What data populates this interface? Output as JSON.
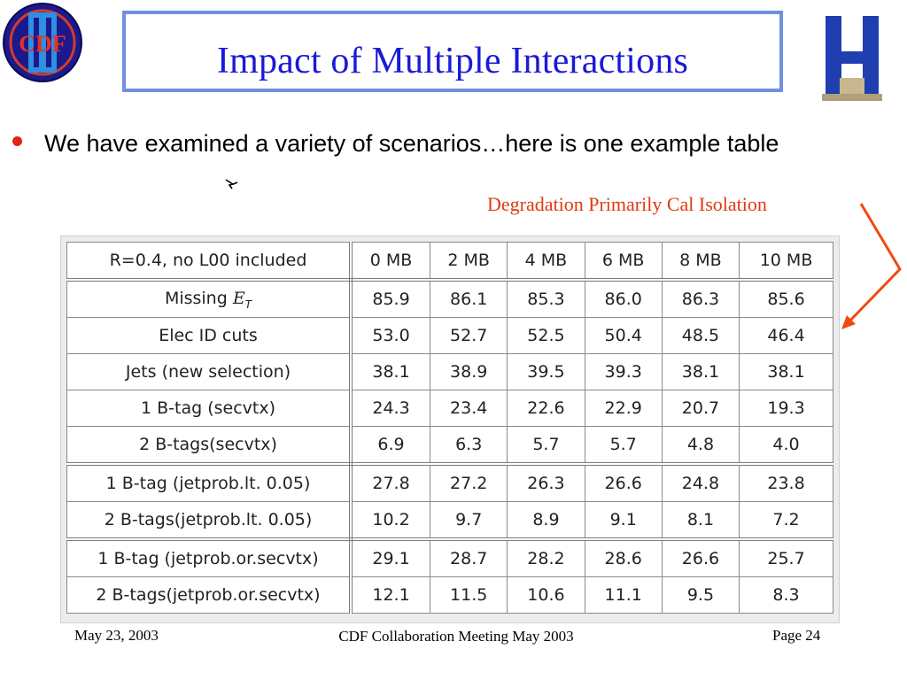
{
  "header": {
    "title": "Impact of Multiple Interactions",
    "logo_left_text": "CDF",
    "logo_left_letter": "II",
    "logo_right_letter": "H"
  },
  "bullet": {
    "text": "We have examined a variety of scenarios…here is one example table"
  },
  "annotation": {
    "text": "Degradation Primarily Cal Isolation"
  },
  "table": {
    "header": [
      "R=0.4, no L00 included",
      "0 MB",
      "2 MB",
      "4 MB",
      "6 MB",
      "8 MB",
      "10 MB"
    ],
    "missing_et_label": "Missing ",
    "missing_et_symbol": "E",
    "missing_et_sub": "T",
    "rows": [
      [
        "Missing E_T",
        "85.9",
        "86.1",
        "85.3",
        "86.0",
        "86.3",
        "85.6"
      ],
      [
        "Elec ID  cuts",
        "53.0",
        "52.7",
        "52.5",
        "50.4",
        "48.5",
        "46.4"
      ],
      [
        "Jets (new selection)",
        "38.1",
        "38.9",
        "39.5",
        "39.3",
        "38.1",
        "38.1"
      ],
      [
        "1 B-tag (secvtx)",
        "24.3",
        "23.4",
        "22.6",
        "22.9",
        "20.7",
        "19.3"
      ],
      [
        "2 B-tags(secvtx)",
        "6.9",
        "6.3",
        "5.7",
        "5.7",
        "4.8",
        "4.0"
      ],
      [
        "1 B-tag (jetprob.lt.  0.05)",
        "27.8",
        "27.2",
        "26.3",
        "26.6",
        "24.8",
        "23.8"
      ],
      [
        "2 B-tags(jetprob.lt.  0.05)",
        "10.2",
        "9.7",
        "8.9",
        "9.1",
        "8.1",
        "7.2"
      ],
      [
        "1 B-tag (jetprob.or.secvtx)",
        "29.1",
        "28.7",
        "28.2",
        "28.6",
        "26.6",
        "25.7"
      ],
      [
        "2 B-tags(jetprob.or.secvtx)",
        "12.1",
        "11.5",
        "10.6",
        "11.1",
        "9.5",
        "8.3"
      ]
    ]
  },
  "footer": {
    "left": "May 23, 2003",
    "center": "CDF Collaboration Meeting May 2003",
    "right": "Page 24"
  },
  "colors": {
    "title": "#1a1ad8",
    "title_border": "#6f8fe0",
    "bullet_dot": "#e2231a",
    "annotation": "#e03a10"
  }
}
